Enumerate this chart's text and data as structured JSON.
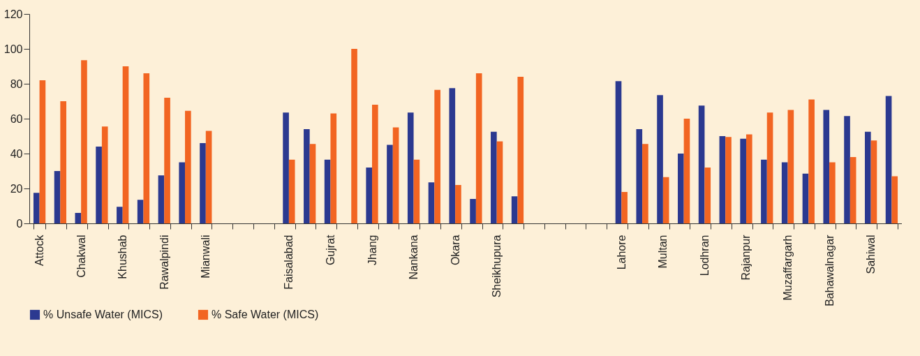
{
  "chart_data": {
    "type": "bar",
    "categories": [
      "Attock",
      null,
      "Chakwal",
      null,
      "Khushab",
      null,
      "Rawalpindi",
      null,
      "Mianwali",
      null,
      null,
      null,
      "Faisalabad",
      null,
      "Gujrat",
      null,
      "Jhang",
      null,
      "Nankana",
      null,
      "Okara",
      null,
      "Sheikhupura",
      null,
      null,
      null,
      null,
      null,
      "Lahore",
      null,
      "Multan",
      null,
      "Lodhran",
      null,
      "Rajanpur",
      null,
      "Muzaffargarh",
      null,
      "Bahawalnagar",
      null,
      "Sahiwal",
      null
    ],
    "series": [
      {
        "name": "% Unsafe Water (MICS)",
        "color": "#2b3990",
        "values": [
          17.5,
          30,
          6,
          44,
          9.5,
          13.5,
          27.5,
          35,
          46,
          null,
          null,
          null,
          63.5,
          54,
          36.5,
          0,
          32,
          45,
          63.5,
          23.5,
          77.5,
          14,
          52.5,
          15.5,
          null,
          null,
          null,
          null,
          81.5,
          54,
          73.5,
          40,
          67.5,
          50,
          48.5,
          36.5,
          35,
          28.5,
          65,
          61.5,
          52.5,
          73
        ]
      },
      {
        "name": "% Safe Water (MICS)",
        "color": "#f26522",
        "values": [
          82,
          70,
          93.5,
          55.5,
          90,
          86,
          72,
          64.5,
          53,
          null,
          null,
          null,
          36.5,
          45.5,
          63,
          100,
          68,
          55,
          36.5,
          76.5,
          22,
          86,
          47,
          84,
          null,
          null,
          null,
          null,
          18,
          45.5,
          26.5,
          60,
          32,
          49.5,
          51,
          63.5,
          65,
          71,
          35,
          38,
          47.5,
          27
        ]
      }
    ],
    "ylim": [
      0,
      120
    ],
    "yticks": [
      0,
      20,
      40,
      60,
      80,
      100,
      120
    ],
    "grid": false,
    "legend": "bottom"
  }
}
